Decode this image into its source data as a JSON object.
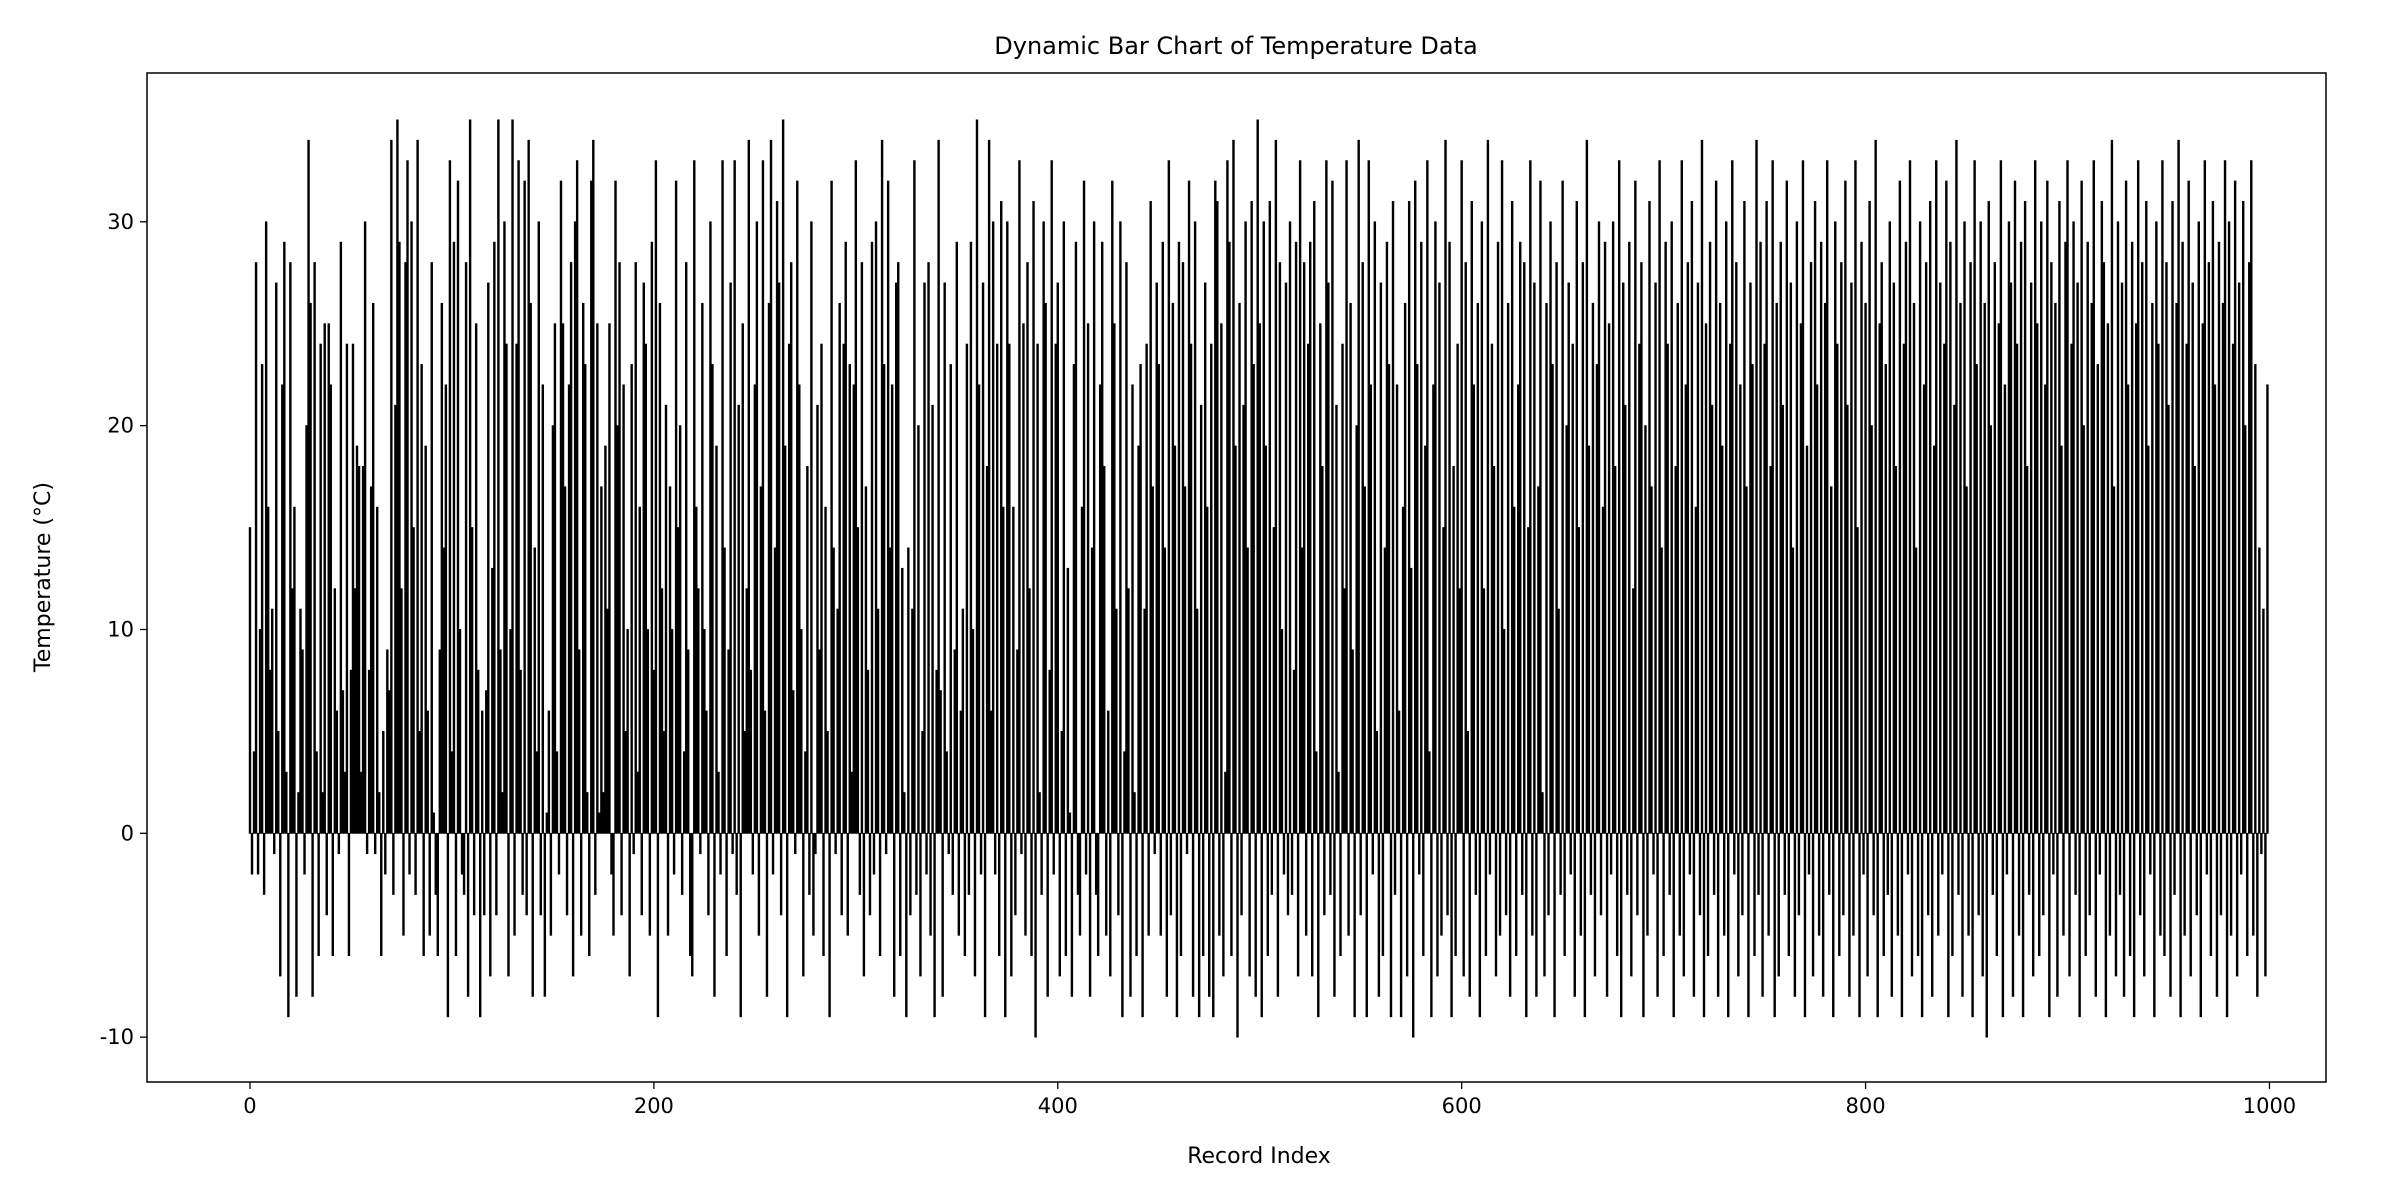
{
  "chart_data": {
    "type": "bar",
    "title": "Dynamic Bar Chart of Temperature Data",
    "x_label": "Record Index",
    "y_label": "Temperature (°C)",
    "color": "#000000",
    "xlim": [
      -51,
      1028
    ],
    "xticks": [
      0,
      200,
      400,
      600,
      800,
      1000
    ],
    "ylim": [
      -12.2,
      37.3
    ],
    "yticks": [
      -10,
      0,
      10,
      20,
      30
    ],
    "grid": false,
    "values": [
      15,
      -2,
      4,
      28,
      -2,
      10,
      23,
      -3,
      30,
      16,
      8,
      11,
      -1,
      27,
      5,
      -7,
      22,
      29,
      3,
      -9,
      28,
      12,
      16,
      -8,
      2,
      11,
      9,
      -2,
      20,
      34,
      26,
      -8,
      28,
      4,
      -6,
      24,
      2,
      25,
      -4,
      25,
      22,
      -6,
      12,
      6,
      -1,
      29,
      7,
      3,
      24,
      -6,
      8,
      24,
      12,
      19,
      18,
      3,
      18,
      30,
      -1,
      8,
      17,
      26,
      -1,
      16,
      2,
      -6,
      5,
      -2,
      9,
      7,
      34,
      -3,
      21,
      35,
      29,
      12,
      -5,
      28,
      33,
      -2,
      30,
      15,
      -3,
      34,
      5,
      23,
      -6,
      19,
      6,
      -5,
      28,
      1,
      -3,
      -6,
      9,
      26,
      14,
      22,
      -9,
      33,
      4,
      29,
      -6,
      32,
      10,
      -2,
      -3,
      28,
      -8,
      35,
      15,
      -4,
      25,
      8,
      -9,
      6,
      -4,
      7,
      27,
      -7,
      13,
      29,
      -4,
      35,
      9,
      2,
      30,
      24,
      -7,
      10,
      35,
      -5,
      24,
      33,
      8,
      -3,
      32,
      -4,
      34,
      26,
      -8,
      14,
      4,
      30,
      -4,
      22,
      -8,
      1,
      6,
      -5,
      20,
      25,
      4,
      -2,
      32,
      25,
      17,
      -4,
      22,
      28,
      -7,
      30,
      33,
      9,
      -5,
      26,
      23,
      2,
      -6,
      32,
      34,
      -3,
      25,
      1,
      17,
      2,
      19,
      11,
      25,
      -2,
      -5,
      32,
      20,
      28,
      -4,
      22,
      5,
      10,
      -7,
      23,
      -1,
      28,
      3,
      16,
      -4,
      27,
      24,
      10,
      -5,
      29,
      8,
      33,
      -9,
      26,
      12,
      5,
      21,
      -5,
      17,
      10,
      -2,
      32,
      15,
      20,
      -3,
      4,
      28,
      9,
      -6,
      -7,
      33,
      16,
      12,
      -1,
      26,
      10,
      6,
      -4,
      30,
      23,
      -8,
      19,
      3,
      -2,
      33,
      14,
      -6,
      9,
      27,
      -1,
      33,
      -3,
      21,
      -9,
      25,
      5,
      12,
      34,
      8,
      -2,
      22,
      30,
      -5,
      17,
      33,
      6,
      -8,
      26,
      34,
      -2,
      14,
      31,
      27,
      -4,
      35,
      19,
      -9,
      24,
      28,
      7,
      -1,
      32,
      22,
      10,
      -7,
      4,
      18,
      -3,
      30,
      -5,
      -1,
      21,
      9,
      24,
      -6,
      16,
      5,
      -9,
      32,
      14,
      -1,
      11,
      26,
      -4,
      24,
      29,
      -5,
      23,
      3,
      22,
      33,
      15,
      -3,
      28,
      -7,
      17,
      8,
      -4,
      29,
      -2,
      30,
      11,
      -6,
      34,
      23,
      -1,
      32,
      14,
      22,
      -8,
      27,
      28,
      -6,
      13,
      2,
      -9,
      14,
      -4,
      11,
      33,
      -3,
      20,
      -7,
      5,
      27,
      -2,
      28,
      -5,
      21,
      -9,
      8,
      34,
      7,
      -8,
      27,
      4,
      -1,
      23,
      -3,
      9,
      29,
      -5,
      6,
      11,
      -6,
      24,
      -3,
      29,
      10,
      -7,
      35,
      22,
      -2,
      27,
      -9,
      18,
      34,
      6,
      30,
      -2,
      24,
      -6,
      31,
      16,
      -9,
      30,
      24,
      -7,
      16,
      -4,
      9,
      33,
      -1,
      25,
      -5,
      28,
      12,
      -6,
      31,
      -10,
      24,
      2,
      -3,
      30,
      26,
      -8,
      8,
      33,
      -2,
      24,
      27,
      -7,
      5,
      30,
      -6,
      13,
      1,
      -8,
      23,
      29,
      -3,
      -5,
      16,
      32,
      -2,
      25,
      -8,
      14,
      30,
      -3,
      -6,
      22,
      29,
      18,
      -5,
      6,
      -7,
      32,
      25,
      11,
      -4,
      30,
      -9,
      4,
      28,
      12,
      -8,
      22,
      2,
      -6,
      19,
      23,
      -9,
      11,
      24,
      -5,
      31,
      17,
      -1,
      27,
      23,
      -5,
      29,
      14,
      -8,
      33,
      -4,
      26,
      19,
      -9,
      29,
      -6,
      28,
      17,
      -1,
      32,
      24,
      -8,
      30,
      11,
      -9,
      21,
      -6,
      27,
      16,
      -8,
      24,
      -9,
      32,
      31,
      -5,
      25,
      -7,
      3,
      33,
      29,
      -6,
      34,
      19,
      -10,
      26,
      -4,
      21,
      30,
      14,
      -7,
      31,
      23,
      -8,
      35,
      25,
      -9,
      30,
      19,
      -6,
      31,
      -3,
      15,
      34,
      -8,
      28,
      10,
      -2,
      27,
      -4,
      30,
      -3,
      8,
      29,
      -7,
      33,
      14,
      28,
      -5,
      24,
      29,
      -7,
      31,
      4,
      -9,
      25,
      18,
      -4,
      33,
      27,
      -3,
      32,
      -8,
      21,
      3,
      -6,
      24,
      12,
      33,
      -5,
      26,
      9,
      -9,
      20,
      34,
      -4,
      28,
      17,
      -9,
      33,
      22,
      -2,
      30,
      5,
      -8,
      27,
      -6,
      14,
      29,
      23,
      -9,
      31,
      -3,
      22,
      6,
      -9,
      16,
      26,
      -7,
      31,
      13,
      -10,
      32,
      23,
      -2,
      29,
      -6,
      19,
      33,
      4,
      -9,
      22,
      30,
      -7,
      27,
      -5,
      15,
      34,
      -4,
      29,
      -9,
      18,
      -6,
      24,
      12,
      33,
      -7,
      28,
      5,
      -8,
      31,
      22,
      -3,
      26,
      -9,
      30,
      12,
      -6,
      34,
      -2,
      24,
      18,
      -7,
      29,
      -5,
      33,
      10,
      -4,
      26,
      -8,
      31,
      16,
      -6,
      22,
      29,
      -3,
      28,
      -9,
      15,
      33,
      -5,
      27,
      -8,
      17,
      32,
      2,
      -7,
      26,
      -4,
      30,
      23,
      -9,
      28,
      11,
      -3,
      32,
      -6,
      20,
      27,
      -2,
      24,
      -8,
      31,
      15,
      -5,
      28,
      -9,
      34,
      19,
      -3,
      26,
      -7,
      23,
      30,
      -4,
      16,
      29,
      -8,
      25,
      -2,
      30,
      18,
      -6,
      33,
      -9,
      27,
      21,
      -3,
      29,
      -7,
      12,
      32,
      -4,
      24,
      28,
      -9,
      20,
      -5,
      31,
      17,
      -2,
      27,
      -8,
      33,
      14,
      -6,
      29,
      24,
      -3,
      30,
      -9,
      18,
      26,
      -5,
      33,
      -7,
      22,
      28,
      -2,
      31,
      -8,
      16,
      27,
      -4,
      34,
      -9,
      25,
      -6,
      29,
      21,
      -3,
      32,
      -8,
      26,
      19,
      -5,
      30,
      -9,
      24,
      33,
      -2,
      28,
      -7,
      22,
      -4,
      31,
      17,
      -9,
      27,
      23,
      -6,
      34,
      -3,
      29,
      -8,
      24,
      31,
      -5,
      18,
      33,
      -9,
      26,
      -7,
      29,
      21,
      -3,
      32,
      -6,
      27,
      14,
      -8,
      30,
      -4,
      25,
      33,
      -9,
      19,
      -2,
      28,
      -7,
      31,
      22,
      -5,
      29,
      -8,
      26,
      33,
      -3,
      17,
      -9,
      30,
      24,
      -6,
      28,
      -4,
      32,
      21,
      -8,
      27,
      -5,
      33,
      15,
      -9,
      29,
      -2,
      26,
      -7,
      31,
      20,
      -4,
      34,
      -9,
      25,
      28,
      -6,
      23,
      -3,
      30,
      -8,
      27,
      18,
      -5,
      32,
      -9,
      24,
      29,
      -2,
      33,
      -7,
      26,
      14,
      -6,
      30,
      -9,
      22,
      28,
      -4,
      31,
      -8,
      19,
      33,
      -5,
      27,
      -2,
      24,
      32,
      -9,
      29,
      -6,
      21,
      34,
      -3,
      26,
      -8,
      30,
      17,
      -5,
      28,
      -9,
      33,
      23,
      -4,
      30,
      -7,
      26,
      -10,
      31,
      20,
      -3,
      28,
      -6,
      25,
      33,
      -9,
      22,
      -2,
      30,
      27,
      -8,
      32,
      24,
      -5,
      29,
      -9,
      31,
      18,
      -3,
      27,
      -7,
      33,
      25,
      -6,
      30,
      -4,
      22,
      32,
      -9,
      28,
      -2,
      26,
      -8,
      31,
      19,
      -5,
      29,
      33,
      -7,
      24,
      30,
      -3,
      27,
      -9,
      32,
      20,
      -6,
      29,
      -4,
      26,
      33,
      -8,
      23,
      -2,
      31,
      28,
      -9,
      25,
      -5,
      34,
      17,
      -7,
      30,
      -3,
      27,
      -8,
      32,
      22,
      -6,
      29,
      -9,
      25,
      33,
      -4,
      28,
      -7,
      31,
      19,
      -2,
      26,
      -9,
      30,
      24,
      -5,
      33,
      -6,
      28,
      21,
      -8,
      31,
      -3,
      26,
      34,
      -9,
      29,
      -5,
      24,
      32,
      -7,
      27,
      18,
      -4,
      30,
      -9,
      25,
      33,
      -2,
      28,
      -6,
      31,
      22,
      -8,
      29,
      -4,
      26,
      33,
      -9,
      30,
      -5,
      24,
      32,
      -7,
      27,
      -2,
      31,
      20,
      -6,
      28,
      33,
      -5,
      23,
      -8,
      14,
      -1,
      11,
      -7,
      22
    ]
  }
}
